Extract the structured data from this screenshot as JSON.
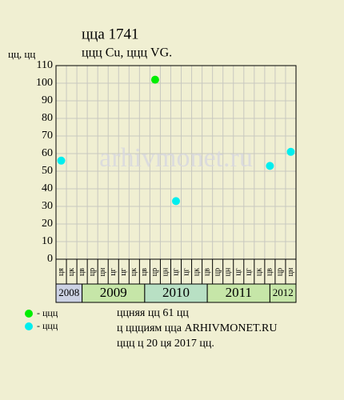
{
  "chart_data": {
    "type": "scatter",
    "title": "ццa 1741",
    "subtitle": "ццц Cu, ццц VG.",
    "y_label": "цц, цц",
    "watermark": "arhivmonet.ru",
    "categories": [
      "ця",
      "цк",
      "цв",
      "цр",
      "цн",
      "цг",
      "цг",
      "цк",
      "цв",
      "цр",
      "цн",
      "цг",
      "цг",
      "цк",
      "цв",
      "цр",
      "цн",
      "цг",
      "цг",
      "цк",
      "цв",
      "цр",
      "цн"
    ],
    "years": [
      {
        "label": "2008",
        "color": "#ccd2e4"
      },
      {
        "label": "2009",
        "color": "#c6e6a8"
      },
      {
        "label": "2010",
        "color": "#b8e0c4"
      },
      {
        "label": "2011",
        "color": "#c6e6a8"
      },
      {
        "label": "2012",
        "color": "#c6e6a8"
      }
    ],
    "series": [
      {
        "name": "- ццц",
        "color": "#00ee00",
        "values": [
          null,
          null,
          null,
          null,
          null,
          null,
          null,
          null,
          null,
          102,
          null,
          null,
          null,
          null,
          null,
          null,
          null,
          null,
          null,
          null,
          null,
          null,
          null
        ]
      },
      {
        "name": "- ццц",
        "color": "#00eeee",
        "values": [
          56,
          null,
          null,
          null,
          null,
          null,
          null,
          null,
          null,
          null,
          null,
          33,
          null,
          null,
          null,
          null,
          null,
          null,
          null,
          null,
          53,
          null,
          61
        ]
      }
    ],
    "ylim": [
      0,
      110
    ],
    "yticks": [
      0,
      10,
      20,
      30,
      40,
      50,
      60,
      70,
      80,
      90,
      100,
      110
    ],
    "grid": true,
    "notes": [
      "ццняя цц 61 цц",
      "ц ццциям цца ARHIVMONET.RU",
      "ццц ц 20 ця 2017 цц."
    ]
  }
}
